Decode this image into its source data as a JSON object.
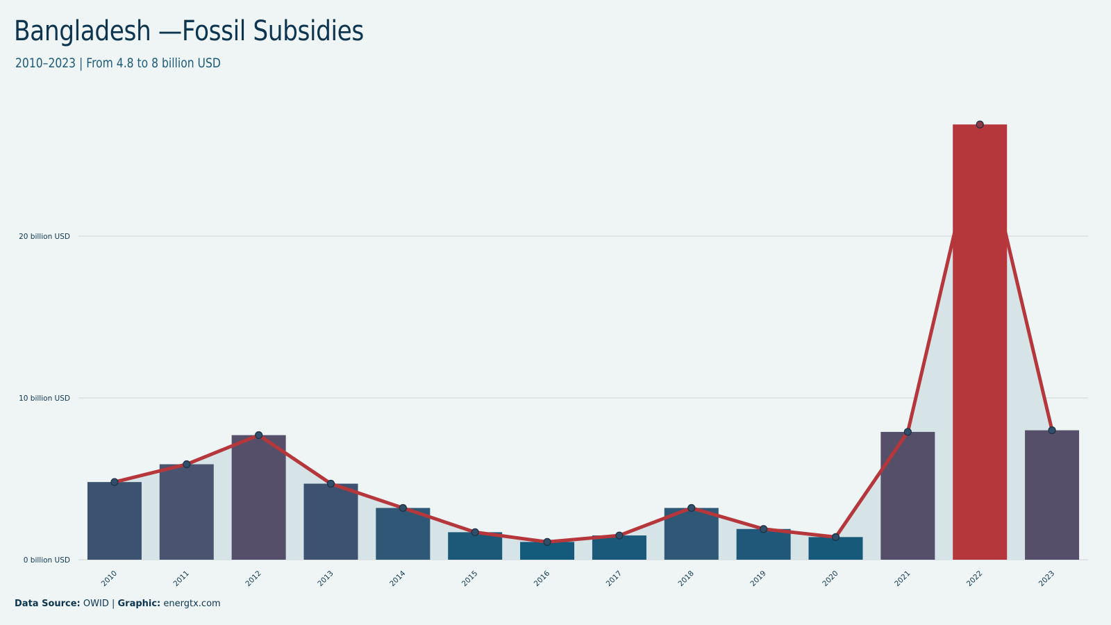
{
  "header": {
    "title": "Bangladesh —Fossil Subsidies",
    "subtitle": "2010–2023 | From 4.8 to 8 billion USD"
  },
  "footer": {
    "source_label": "Data Source:",
    "source_value": " OWID | ",
    "graphic_label": "Graphic:",
    "graphic_value": " energtx.com"
  },
  "colors": {
    "background": "#eff5f5",
    "line": "#b5373b",
    "area": "#d6e3e7",
    "highlight_bar": "#b5373b",
    "grid": "#d5dadd"
  },
  "chart_data": {
    "type": "bar",
    "title": "Bangladesh —Fossil Subsidies",
    "xlabel": "",
    "ylabel": "",
    "categories": [
      "2010",
      "2011",
      "2012",
      "2013",
      "2014",
      "2015",
      "2016",
      "2017",
      "2018",
      "2019",
      "2020",
      "2021",
      "2022",
      "2023"
    ],
    "series": [
      {
        "values": [
          4.8,
          5.9,
          7.7,
          4.7,
          3.2,
          1.7,
          1.1,
          1.5,
          3.2,
          1.9,
          1.4,
          7.9,
          26.9,
          8.0
        ],
        "bar_colors": [
          "#3d5270",
          "#4a5470",
          "#554f69",
          "#3d5270",
          "#2e5876",
          "#1c5878",
          "#135a7b",
          "#1a5979",
          "#2e5876",
          "#1f5878",
          "#175979",
          "#554f69",
          "#b5373b",
          "#554f69"
        ]
      }
    ],
    "ylim": [
      0,
      27.5
    ],
    "yticks": [
      0,
      10,
      20
    ],
    "ytick_labels": [
      "0 billion USD",
      "10 billion USD",
      "20 billion USD"
    ],
    "grid": true,
    "legend": "none",
    "overlay": "line with markers and shaded area"
  }
}
